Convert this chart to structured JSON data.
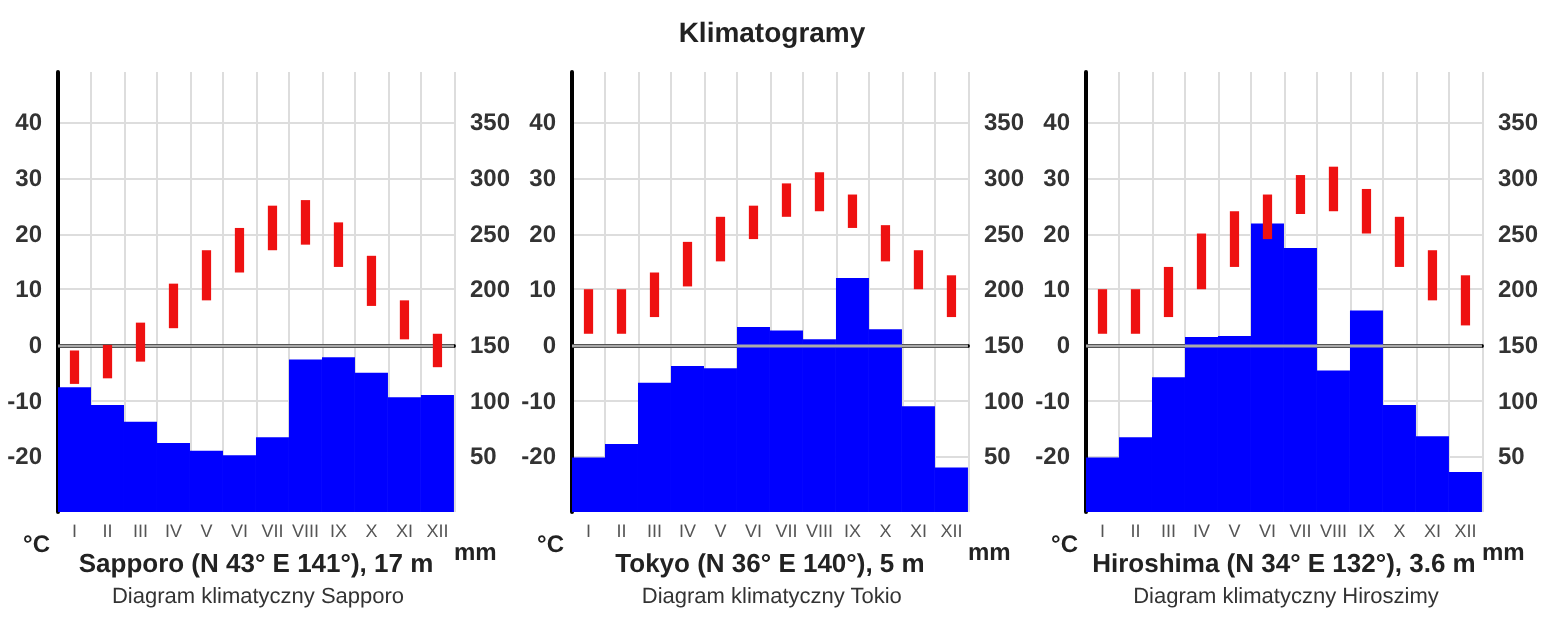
{
  "chart_data": [
    {
      "type": "bar",
      "xlabel": "Sapporo (N 43° E 141°), 17 m",
      "ylabel": "°C",
      "y2label": "mm",
      "annotations": [
        "Diagram klimatyczny Sapporo"
      ],
      "categories": [
        "I",
        "II",
        "III",
        "IV",
        "V",
        "VI",
        "VII",
        "VIII",
        "IX",
        "X",
        "XI",
        "XII"
      ],
      "series": [
        {
          "color": "#0000ff",
          "axis": "y2",
          "values": [
            112,
            96,
            81,
            62,
            55,
            51,
            67,
            137,
            139,
            125,
            103,
            105
          ]
        },
        {
          "color": "#ee1111",
          "base": [
            -7,
            -6,
            -3,
            3,
            8,
            13,
            17,
            18,
            14,
            7,
            1,
            -4
          ],
          "values": [
            6,
            6,
            7,
            8,
            9,
            8,
            8,
            8,
            8,
            9,
            7,
            6
          ]
        }
      ],
      "ylim": [
        -30,
        49
      ],
      "yticks": [
        -20,
        -10,
        0,
        10,
        20,
        30,
        40
      ],
      "y2lim": [
        0,
        395
      ],
      "y2ticks": [
        50,
        100,
        150,
        200,
        250,
        300,
        350
      ],
      "grid": true,
      "ref_lines": [
        {
          "axis": "y",
          "value": 0,
          "color": "#aaaaaa"
        }
      ]
    },
    {
      "type": "bar",
      "title": "Klimatogramy",
      "xlabel": "Tokyo (N 36° E 140°), 5 m",
      "ylabel": "°C",
      "y2label": "mm",
      "annotations": [
        "Diagram klimatyczny Tokio"
      ],
      "categories": [
        "I",
        "II",
        "III",
        "IV",
        "V",
        "VI",
        "VII",
        "VIII",
        "IX",
        "X",
        "XI",
        "XII"
      ],
      "series": [
        {
          "color": "#0000ff",
          "axis": "y2",
          "values": [
            49,
            61,
            116,
            131,
            129,
            166,
            163,
            155,
            210,
            164,
            95,
            40
          ]
        },
        {
          "color": "#ee1111",
          "base": [
            2,
            2,
            5,
            10.5,
            15,
            19,
            23,
            24,
            21,
            15,
            10,
            5
          ],
          "values": [
            8,
            8,
            8,
            8,
            8,
            6,
            6,
            7,
            6,
            6.5,
            7,
            7.5
          ]
        }
      ],
      "ylim": [
        -30,
        49
      ],
      "yticks": [
        -20,
        -10,
        0,
        10,
        20,
        30,
        40
      ],
      "y2lim": [
        0,
        395
      ],
      "y2ticks": [
        50,
        100,
        150,
        200,
        250,
        300,
        350
      ],
      "grid": true,
      "ref_lines": [
        {
          "axis": "y",
          "value": 0,
          "color": "#aaaaaa"
        }
      ]
    },
    {
      "type": "bar",
      "xlabel": "Hiroshima (N 34° E 132°), 3.6 m",
      "ylabel": "°C",
      "y2label": "mm",
      "annotations": [
        "Diagram klimatyczny Hiroszimy"
      ],
      "categories": [
        "I",
        "II",
        "III",
        "IV",
        "V",
        "VI",
        "VII",
        "VIII",
        "IX",
        "X",
        "XI",
        "XII"
      ],
      "series": [
        {
          "color": "#0000ff",
          "axis": "y2",
          "values": [
            49,
            67,
            121,
            157,
            158,
            259,
            237,
            127,
            181,
            96,
            68,
            36
          ]
        },
        {
          "color": "#ee1111",
          "base": [
            2,
            2,
            5,
            10,
            14,
            19,
            23.5,
            24,
            20,
            14,
            8,
            3.5
          ],
          "values": [
            8,
            8,
            9,
            10,
            10,
            8,
            7,
            8,
            8,
            9,
            9,
            9
          ]
        }
      ],
      "ylim": [
        -30,
        49
      ],
      "yticks": [
        -20,
        -10,
        0,
        10,
        20,
        30,
        40
      ],
      "y2lim": [
        0,
        395
      ],
      "y2ticks": [
        50,
        100,
        150,
        200,
        250,
        300,
        350
      ],
      "grid": true,
      "ref_lines": [
        {
          "axis": "y",
          "value": 0,
          "color": "#aaaaaa"
        }
      ]
    }
  ]
}
